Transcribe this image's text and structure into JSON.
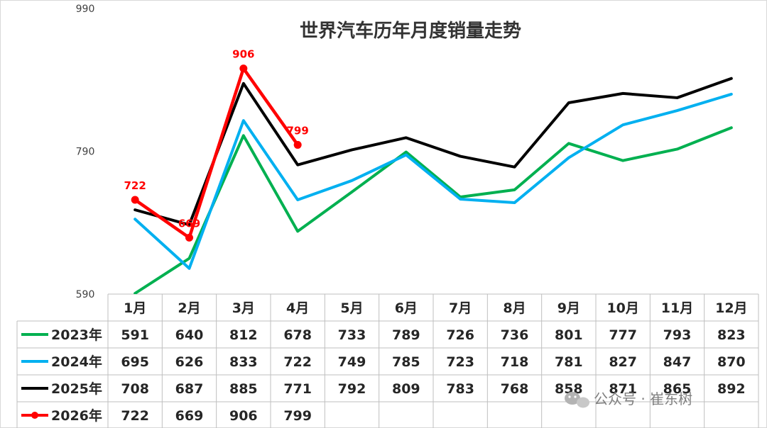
{
  "watermark": "公众号 · 崔东树",
  "chart_data": {
    "type": "line",
    "title": "世界汽车历年月度销量走势",
    "xlabel": "",
    "ylabel": "",
    "categories": [
      "1月",
      "2月",
      "3月",
      "4月",
      "5月",
      "6月",
      "7月",
      "8月",
      "9月",
      "10月",
      "11月",
      "12月"
    ],
    "ylim": [
      590,
      990
    ],
    "yticks": [
      590,
      790,
      990
    ],
    "grid": false,
    "legend": "data-table-left",
    "series": [
      {
        "name": "2023年",
        "color": "#00b050",
        "markers": false,
        "values": [
          591,
          640,
          812,
          678,
          733,
          789,
          726,
          736,
          801,
          777,
          793,
          823
        ]
      },
      {
        "name": "2024年",
        "color": "#00b0f0",
        "markers": false,
        "values": [
          695,
          626,
          833,
          722,
          749,
          785,
          723,
          718,
          781,
          827,
          847,
          870
        ]
      },
      {
        "name": "2025年",
        "color": "#000000",
        "markers": false,
        "values": [
          708,
          687,
          885,
          771,
          792,
          809,
          783,
          768,
          858,
          871,
          865,
          892
        ]
      },
      {
        "name": "2026年",
        "color": "#ff0000",
        "markers": true,
        "data_labels": true,
        "values": [
          722,
          669,
          906,
          799,
          null,
          null,
          null,
          null,
          null,
          null,
          null,
          null
        ]
      }
    ]
  }
}
